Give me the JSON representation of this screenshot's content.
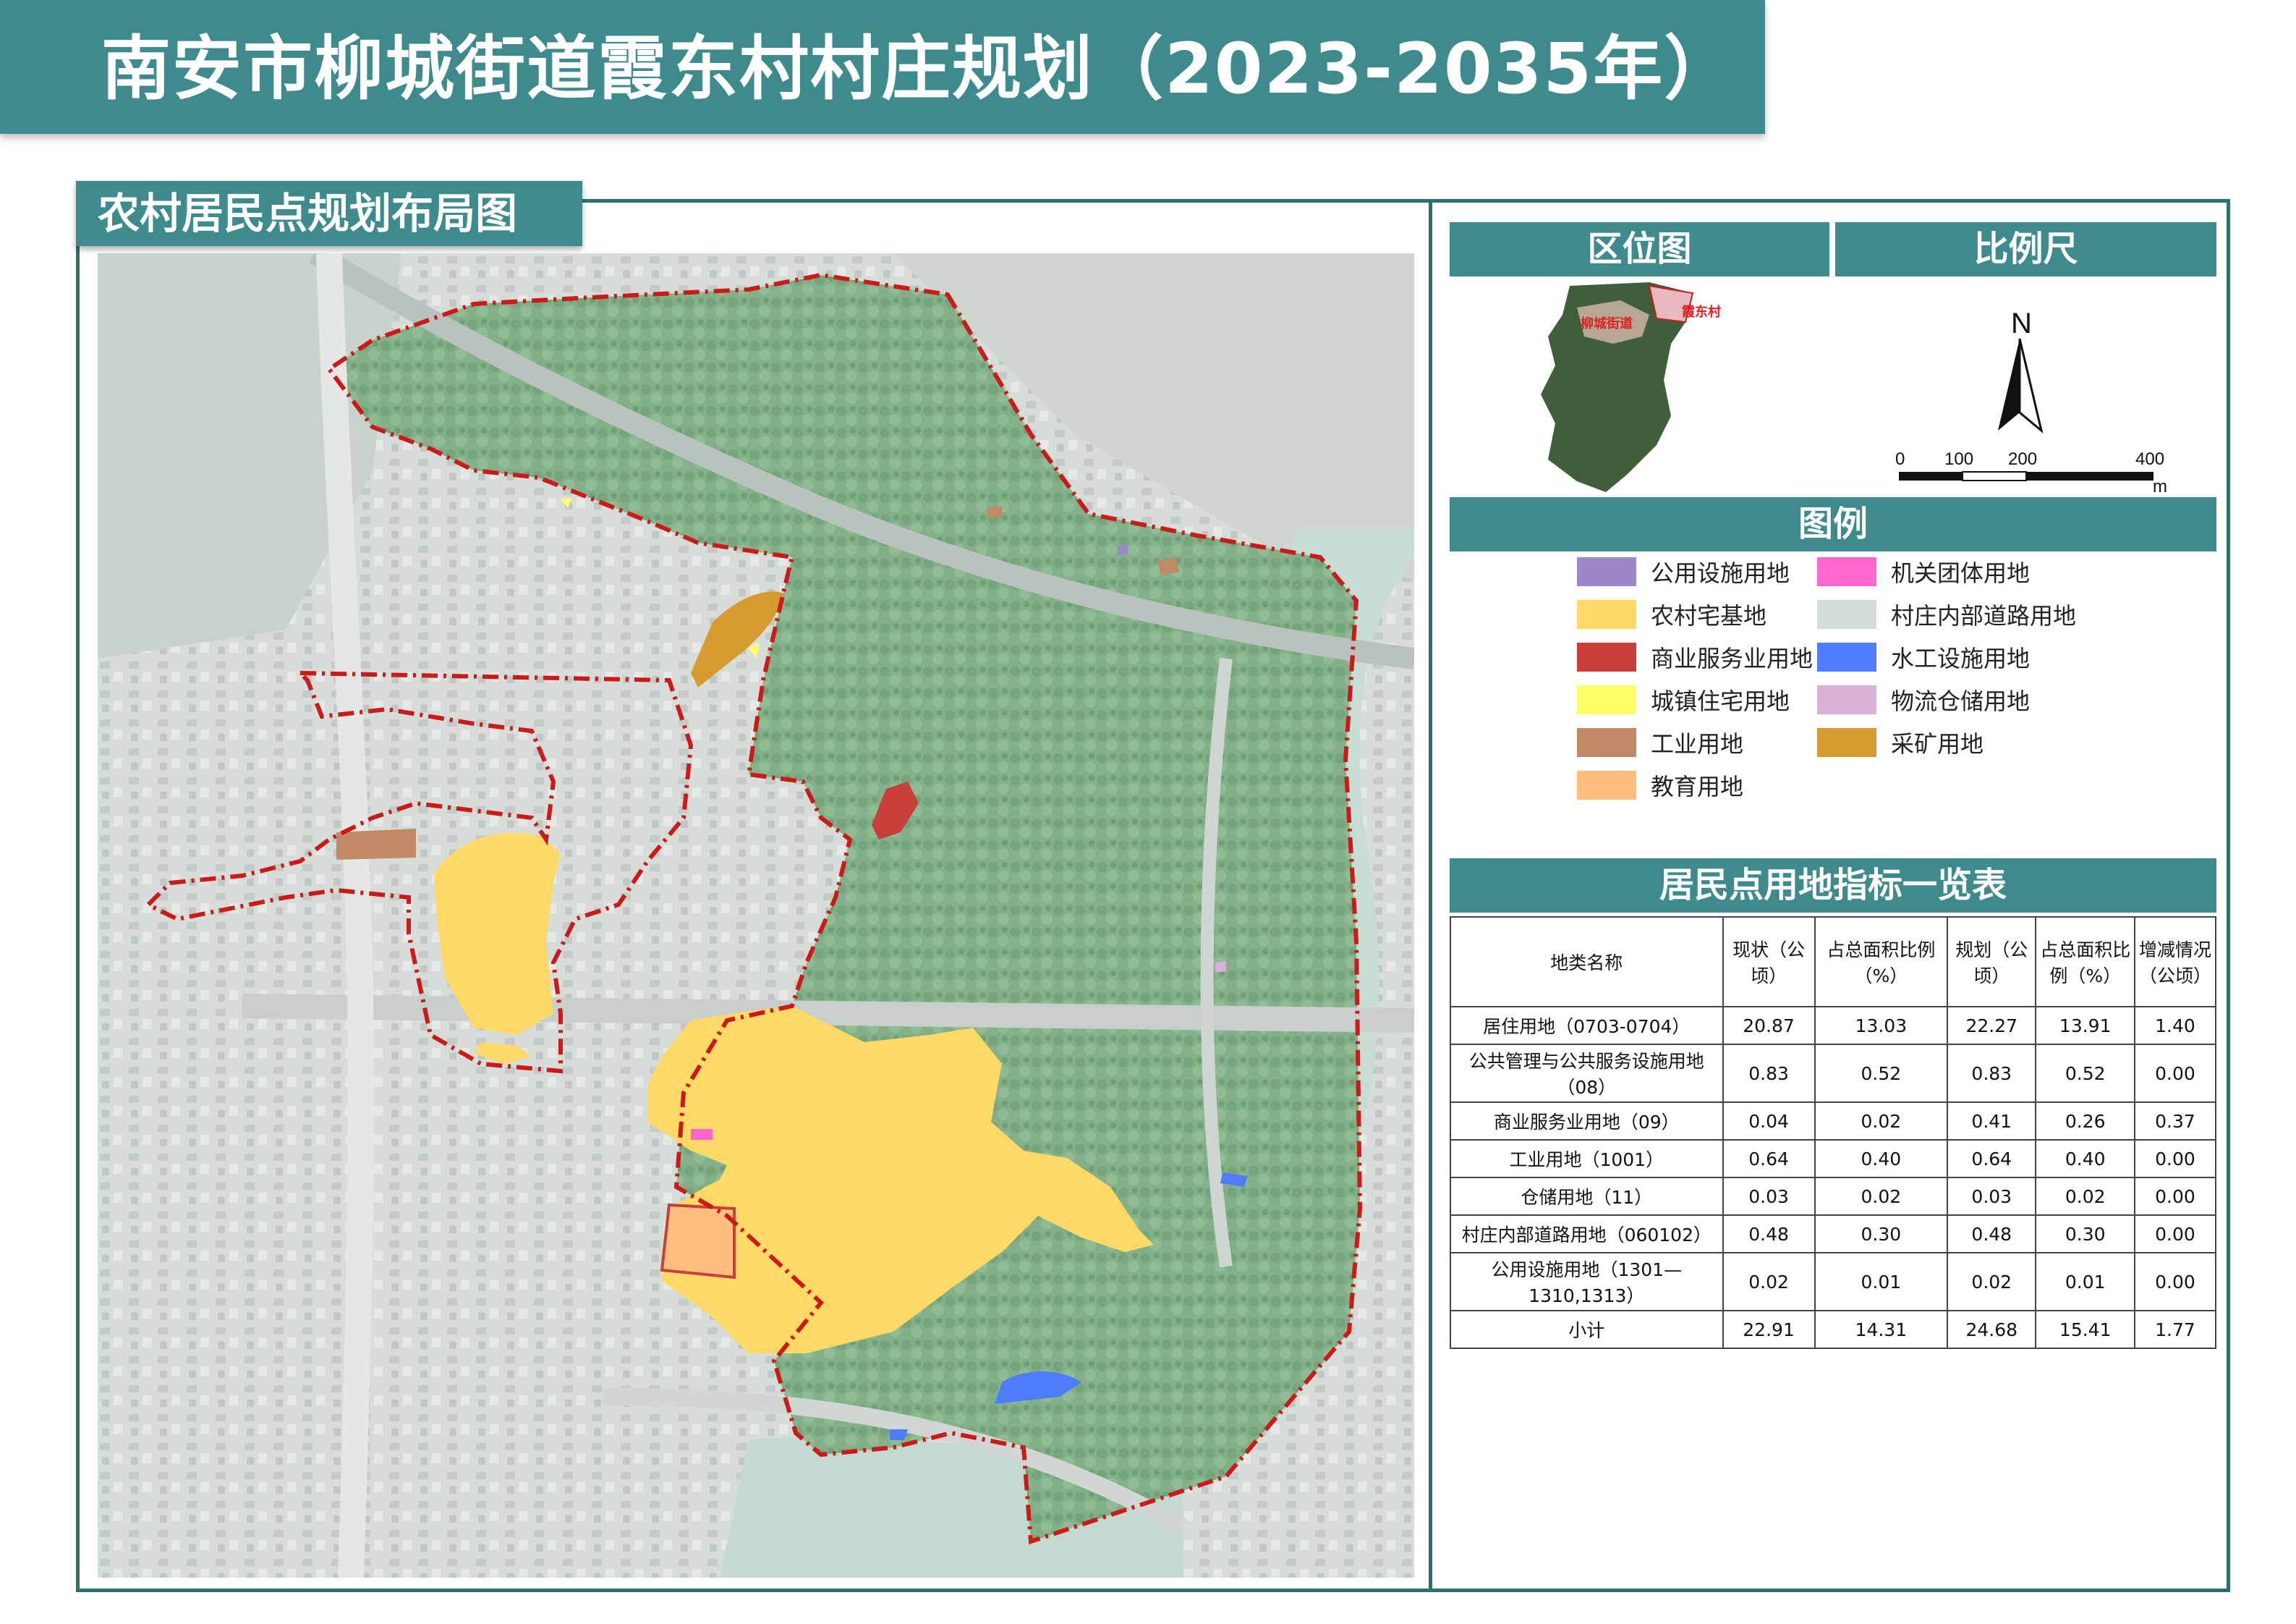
{
  "title": "南安市柳城街道霞东村村庄规划（2023-2035年）",
  "map_title": "农村居民点规划布局图",
  "panels": {
    "location_title": "区位图",
    "scale_title": "比例尺",
    "legend_title": "图例",
    "table_title": "居民点用地指标一览表"
  },
  "location_map": {
    "label_street": "柳城街道",
    "label_village": "霞东村"
  },
  "scale_bar": {
    "north": "N",
    "ticks": [
      "0",
      "100",
      "200",
      "400"
    ],
    "unit": "m"
  },
  "legend": [
    {
      "label": "公用设施用地",
      "color": "#9b87c7"
    },
    {
      "label": "农村宅基地",
      "color": "#ffd966"
    },
    {
      "label": "商业服务业用地",
      "color": "#c9403a"
    },
    {
      "label": "城镇住宅用地",
      "color": "#ffff66"
    },
    {
      "label": "工业用地",
      "color": "#c08a66"
    },
    {
      "label": "教育用地",
      "color": "#ffbf80"
    },
    {
      "label": "机关团体用地",
      "color": "#ff66cc"
    },
    {
      "label": "村庄内部道路用地",
      "color": "#d3dcd8"
    },
    {
      "label": "水工设施用地",
      "color": "#4d7cff"
    },
    {
      "label": "物流仓储用地",
      "color": "#d8b0d8"
    },
    {
      "label": "采矿用地",
      "color": "#d59a30"
    }
  ],
  "table": {
    "headers": [
      "地类名称",
      "现状（公顷）",
      "占总面积比例（%）",
      "规划（公顷）",
      "占总面积比例（%）",
      "增减情况（公顷）"
    ],
    "rows": [
      [
        "居住用地（0703-0704）",
        "20.87",
        "13.03",
        "22.27",
        "13.91",
        "1.40"
      ],
      [
        "公共管理与公共服务设施用地（08）",
        "0.83",
        "0.52",
        "0.83",
        "0.52",
        "0.00"
      ],
      [
        "商业服务业用地（09）",
        "0.04",
        "0.02",
        "0.41",
        "0.26",
        "0.37"
      ],
      [
        "工业用地（1001）",
        "0.64",
        "0.40",
        "0.64",
        "0.40",
        "0.00"
      ],
      [
        "仓储用地（11）",
        "0.03",
        "0.02",
        "0.03",
        "0.02",
        "0.00"
      ],
      [
        "村庄内部道路用地（060102）",
        "0.48",
        "0.30",
        "0.48",
        "0.30",
        "0.00"
      ],
      [
        "公用设施用地（1301—1310,1313）",
        "0.02",
        "0.01",
        "0.02",
        "0.01",
        "0.00"
      ],
      [
        "小计",
        "22.91",
        "14.31",
        "24.68",
        "15.41",
        "1.77"
      ]
    ]
  }
}
